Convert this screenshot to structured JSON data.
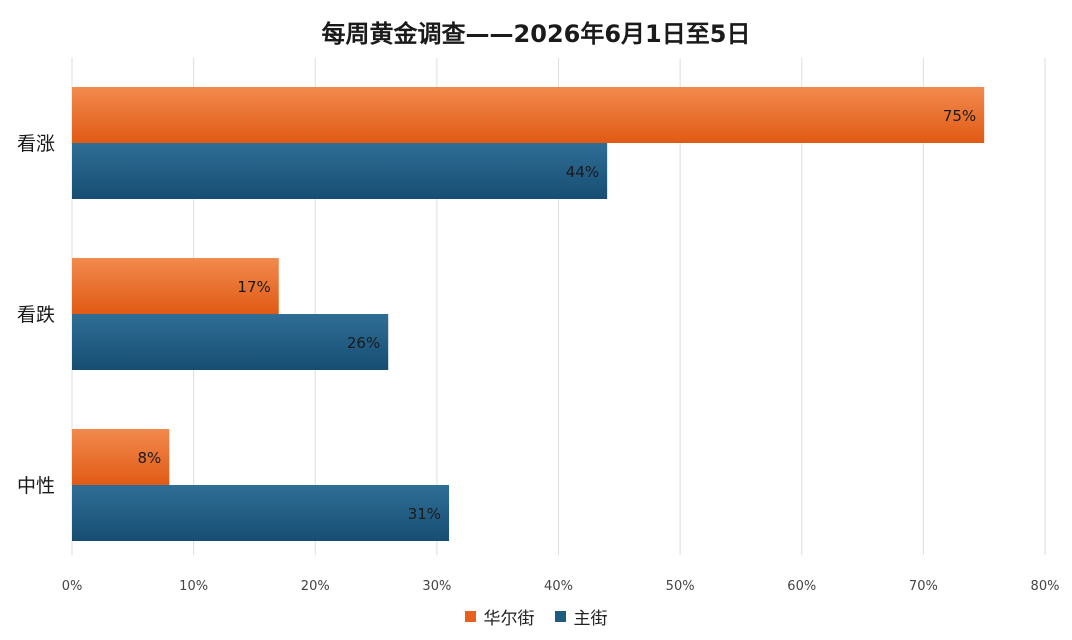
{
  "chart_data": {
    "type": "bar",
    "orientation": "horizontal",
    "title": "每周黄金调查——2026年6月1日至5日",
    "categories": [
      "看涨",
      "看跌",
      "中性"
    ],
    "series": [
      {
        "name": "华尔街",
        "color": "#e8601c",
        "values": [
          75,
          17,
          8
        ],
        "labels": [
          "75%",
          "17%",
          "8%"
        ]
      },
      {
        "name": "主街",
        "color": "#1f5a82",
        "values": [
          44,
          26,
          31
        ],
        "labels": [
          "44%",
          "26%",
          "31%"
        ]
      }
    ],
    "xlim": [
      0,
      80
    ],
    "xticks": [
      "0%",
      "10%",
      "20%",
      "30%",
      "40%",
      "50%",
      "60%",
      "70%",
      "80%"
    ],
    "grid": true,
    "legend_position": "bottom"
  }
}
